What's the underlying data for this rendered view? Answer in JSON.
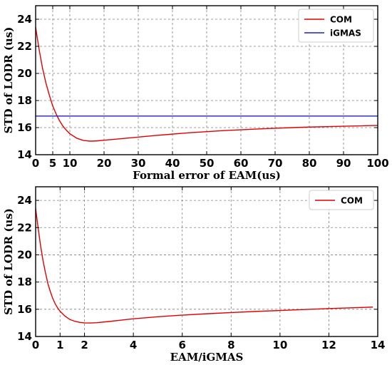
{
  "chart_data": [
    {
      "type": "line",
      "xlabel": "Formal error of EAM(us)",
      "ylabel": "STD of LODR (us)",
      "xlim": [
        0,
        100
      ],
      "ylim": [
        14,
        25
      ],
      "xticks": [
        0,
        5,
        10,
        20,
        30,
        40,
        50,
        60,
        70,
        80,
        90,
        100
      ],
      "yticks": [
        14,
        16,
        18,
        20,
        22,
        24
      ],
      "grid": true,
      "legend_position": "top-right",
      "series": [
        {
          "name": "COM",
          "color": "#e00000",
          "x": [
            0,
            1,
            2,
            3,
            4,
            5,
            6,
            7,
            8,
            9,
            10,
            12,
            14,
            16,
            18,
            20,
            25,
            30,
            35,
            40,
            45,
            50,
            55,
            60,
            65,
            70,
            75,
            80,
            85,
            90,
            95,
            100
          ],
          "y": [
            23.4,
            21.8,
            20.4,
            19.3,
            18.4,
            17.6,
            17.0,
            16.5,
            16.1,
            15.8,
            15.55,
            15.22,
            15.05,
            15.0,
            15.02,
            15.07,
            15.18,
            15.3,
            15.42,
            15.52,
            15.62,
            15.7,
            15.78,
            15.84,
            15.9,
            15.95,
            16.0,
            16.04,
            16.07,
            16.1,
            16.13,
            16.16
          ]
        },
        {
          "name": "iGMAS",
          "color": "#2020c0",
          "x": [
            0,
            100
          ],
          "y": [
            16.85,
            16.85
          ]
        }
      ]
    },
    {
      "type": "line",
      "xlabel": "EAM/iGMAS",
      "ylabel": "STD of LODR (us)",
      "xlim": [
        0,
        14
      ],
      "ylim": [
        14,
        25
      ],
      "xticks": [
        0,
        1,
        2,
        4,
        6,
        8,
        10,
        12,
        14
      ],
      "yticks": [
        14,
        16,
        18,
        20,
        22,
        24
      ],
      "grid": true,
      "legend_position": "top-right",
      "series": [
        {
          "name": "COM",
          "color": "#e00000",
          "x": [
            0,
            0.1,
            0.2,
            0.3,
            0.4,
            0.5,
            0.6,
            0.7,
            0.8,
            0.9,
            1.0,
            1.2,
            1.4,
            1.6,
            1.8,
            2.0,
            2.2,
            2.5,
            3,
            3.5,
            4,
            5,
            6,
            7,
            8,
            9,
            10,
            11,
            12,
            13,
            13.8
          ],
          "y": [
            23.4,
            22.0,
            20.7,
            19.6,
            18.7,
            17.9,
            17.3,
            16.8,
            16.4,
            16.1,
            15.85,
            15.5,
            15.25,
            15.12,
            15.04,
            15.0,
            14.99,
            15.01,
            15.1,
            15.2,
            15.3,
            15.45,
            15.57,
            15.67,
            15.76,
            15.84,
            15.91,
            15.98,
            16.05,
            16.11,
            16.16
          ]
        }
      ]
    }
  ]
}
